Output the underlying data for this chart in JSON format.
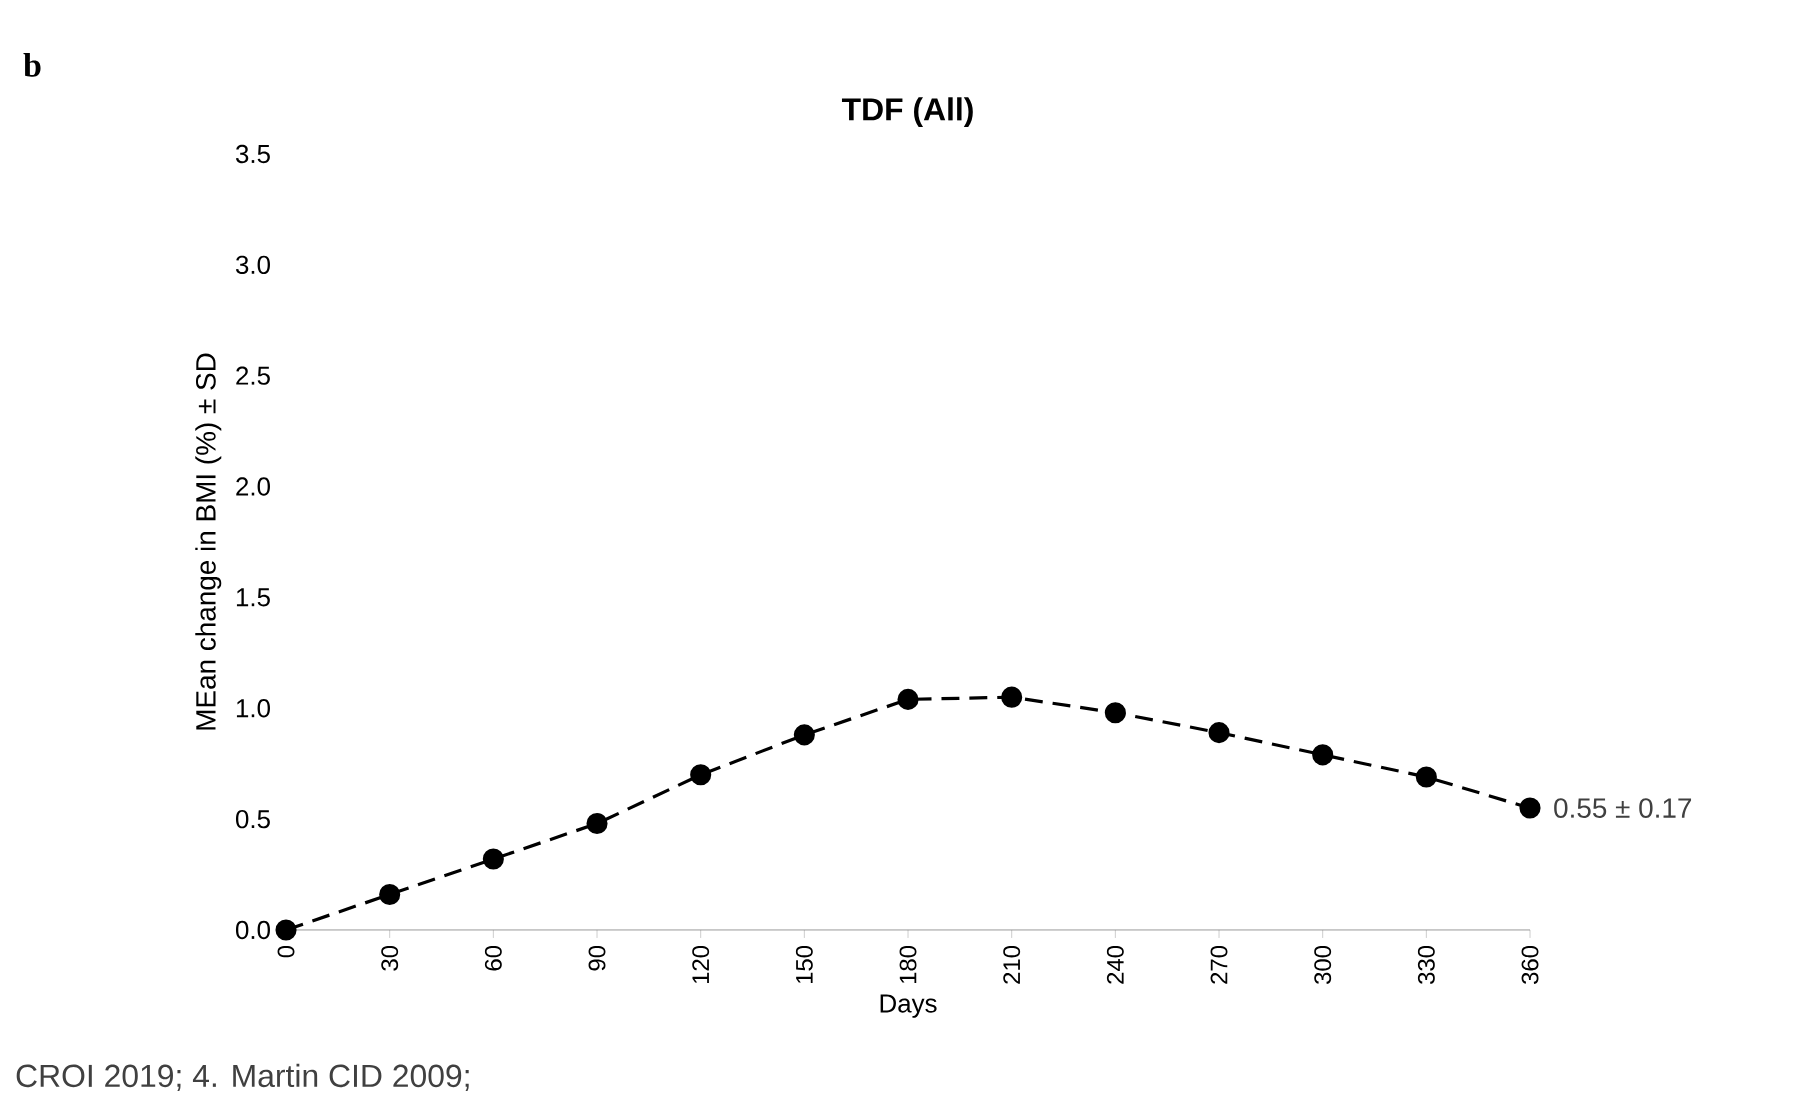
{
  "chart_data": {
    "type": "line",
    "title": "TDF (All)",
    "xlabel": "Days",
    "ylabel": "MEan change in BMI (%) ± SD",
    "x": [
      0,
      30,
      60,
      90,
      120,
      150,
      180,
      210,
      240,
      270,
      300,
      330,
      360
    ],
    "series": [
      {
        "color": "#000000",
        "values": [
          0,
          0.16,
          0.32,
          0.48,
          0.7,
          0.88,
          1.04,
          1.05,
          0.98,
          0.89,
          0.79,
          0.69,
          0.55
        ]
      }
    ],
    "xlim": [
      0,
      360
    ],
    "xticks": [
      0,
      30,
      60,
      90,
      120,
      150,
      180,
      210,
      240,
      270,
      300,
      330,
      360
    ],
    "ylim": [
      0,
      3.5
    ],
    "yticks": [
      {
        "value": 0,
        "label": "0.0"
      },
      {
        "value": 0.5,
        "label": "0.5"
      },
      {
        "value": 1,
        "label": "1.0"
      },
      {
        "value": 1.5,
        "label": "1.5"
      },
      {
        "value": 2,
        "label": "2.0"
      },
      {
        "value": 2.5,
        "label": "2.5"
      },
      {
        "value": 3,
        "label": "3.0"
      },
      {
        "value": 3.5,
        "label": "3.5"
      }
    ],
    "marker": "circle",
    "line_style": "dashed",
    "grid": false,
    "annotations": [
      {
        "text": "0.55 ± 0.17",
        "x": 360,
        "y": 0.55
      },
      "b",
      "CROI 2019; 4. Martin CID 2009;"
    ]
  }
}
